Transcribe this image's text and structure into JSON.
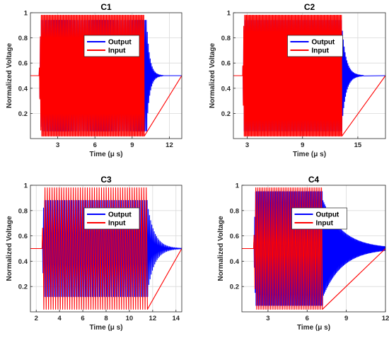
{
  "colors": {
    "output": "#0000ff",
    "input": "#ff0000",
    "grid": "#d9d9d9",
    "axis": "#262626"
  },
  "chart_data": [
    {
      "type": "line",
      "title": "C1",
      "xlabel": "Time (μ s)",
      "ylabel": "Normalized Voltage",
      "xlim": [
        0.8,
        13
      ],
      "ylim": [
        0,
        1
      ],
      "xticks": [
        3,
        6,
        9,
        12
      ],
      "yticks": [
        0.2,
        0.4,
        0.6,
        0.8,
        1
      ],
      "ytick_labels": [
        "0.2",
        "0.4",
        "0.6",
        "0.8",
        "1"
      ],
      "grid": true,
      "legend": "upper-center",
      "series": [
        {
          "name": "Output",
          "color": "#0000ff",
          "baseline": 0.5,
          "start": 1.5,
          "end": 10.2,
          "amplitude": 0.44,
          "ringdown_tau": 0.25,
          "cycles": 110
        },
        {
          "name": "Input",
          "color": "#ff0000",
          "baseline": 0.5,
          "start": 1.5,
          "end": 10.0,
          "amplitude": 0.48,
          "ringdown_tau": 0,
          "cycles": 110
        }
      ]
    },
    {
      "type": "line",
      "title": "C2",
      "xlabel": "Time (μ s)",
      "ylabel": "Normalized Voltage",
      "xlim": [
        1.5,
        18
      ],
      "ylim": [
        0,
        1
      ],
      "xticks": [
        3,
        9,
        15
      ],
      "yticks": [
        0.2,
        0.4,
        0.6,
        0.8,
        1
      ],
      "ytick_labels": [
        "0.2",
        "0.4",
        "0.6",
        "0.8",
        "1"
      ],
      "grid": true,
      "legend": "upper-center",
      "series": [
        {
          "name": "Output",
          "color": "#0000ff",
          "baseline": 0.5,
          "start": 2.5,
          "end": 13.3,
          "amplitude": 0.44,
          "ringdown_tau": 0.45,
          "cycles": 110
        },
        {
          "name": "Input",
          "color": "#ff0000",
          "baseline": 0.5,
          "start": 2.5,
          "end": 13.3,
          "amplitude": 0.48,
          "ringdown_tau": 0,
          "cycles": 110
        }
      ]
    },
    {
      "type": "line",
      "title": "C3",
      "xlabel": "Time (μ s)",
      "ylabel": "Normalized Voltage",
      "xlim": [
        1.5,
        14.5
      ],
      "ylim": [
        0,
        1
      ],
      "xticks": [
        2,
        4,
        6,
        8,
        10,
        12,
        14
      ],
      "yticks": [
        0.2,
        0.4,
        0.6,
        0.8,
        1
      ],
      "ytick_labels": [
        "0.2",
        "0.4",
        "0.6",
        "0.8",
        "1"
      ],
      "grid": true,
      "legend": "upper-center",
      "series": [
        {
          "name": "Output",
          "color": "#0000ff",
          "baseline": 0.5,
          "start": 2.5,
          "end": 11.6,
          "amplitude": 0.38,
          "ringdown_tau": 0.6,
          "cycles": 90
        },
        {
          "name": "Input",
          "color": "#ff0000",
          "baseline": 0.5,
          "start": 2.5,
          "end": 11.6,
          "amplitude": 0.48,
          "ringdown_tau": 0,
          "cycles": 45
        }
      ]
    },
    {
      "type": "line",
      "title": "C4",
      "xlabel": "Time (μ s)",
      "ylabel": "Normalized Voltage",
      "xlim": [
        1,
        12
      ],
      "ylim": [
        0,
        1
      ],
      "xticks": [
        3,
        6,
        9,
        12
      ],
      "yticks": [
        0.2,
        0.4,
        0.6,
        0.8,
        1
      ],
      "ytick_labels": [
        "0.2",
        "0.4",
        "0.6",
        "0.8",
        "1"
      ],
      "grid": true,
      "legend": "upper-center",
      "series": [
        {
          "name": "Output",
          "color": "#0000ff",
          "baseline": 0.5,
          "start": 1.9,
          "end": 7.2,
          "amplitude": 0.45,
          "ringdown_tau": 1.5,
          "cycles": 80
        },
        {
          "name": "Input",
          "color": "#ff0000",
          "baseline": 0.5,
          "start": 1.9,
          "end": 7.2,
          "amplitude": 0.48,
          "ringdown_tau": 0,
          "cycles": 40
        }
      ]
    }
  ]
}
